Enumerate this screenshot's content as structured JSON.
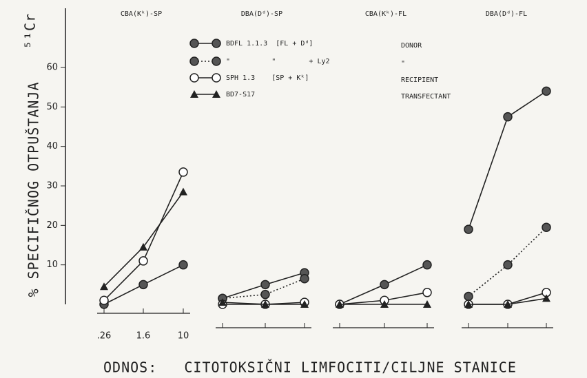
{
  "chart_data": [
    {
      "type": "line",
      "title": "CBA(Kᵏ)-SP",
      "ylabel": "% SPECIFIČNOG OTPUŠTANJA",
      "ylabel_unit": "⁵¹Cr",
      "xlabel": "ODNOS:   CITOTOKSIČNI LIMFOCITI/CILJNE STANICE",
      "ylim": [
        0,
        75
      ],
      "yticks": [
        10,
        20,
        30,
        40,
        50,
        60
      ],
      "categories": [
        ".26",
        "1.6",
        "10"
      ],
      "series": [
        {
          "name": "BDFL 1.1.3  [FL + Dᵈ]",
          "note": "DONOR",
          "marker": "filled-circle",
          "linestyle": "solid",
          "color": "#222222",
          "values": [
            0,
            5,
            10
          ]
        },
        {
          "name": "\"          \"        + Ly2",
          "note": "\"",
          "marker": "filled-circle",
          "linestyle": "dotted",
          "color": "#222222",
          "values": [
            null,
            null,
            null
          ]
        },
        {
          "name": "SPH 1.3    [SP + Kᵏ]",
          "note": "RECIPIENT",
          "marker": "open-circle",
          "linestyle": "solid",
          "color": "#222222",
          "values": [
            1,
            11,
            33.5
          ]
        },
        {
          "name": "BD7-S17",
          "note": "TRANSFECTANT",
          "marker": "triangle",
          "linestyle": "solid",
          "color": "#222222",
          "values": [
            4.5,
            14.5,
            28.5
          ]
        }
      ]
    },
    {
      "type": "line",
      "title": "DBA(Dᵈ)-SP",
      "categories": [
        null,
        null,
        null
      ],
      "series": [
        {
          "marker": "filled-circle",
          "linestyle": "solid",
          "color": "#222222",
          "values": [
            1.5,
            5,
            8
          ]
        },
        {
          "marker": "filled-circle",
          "linestyle": "dotted",
          "color": "#222222",
          "values": [
            1.5,
            2.5,
            6.5
          ]
        },
        {
          "marker": "open-circle",
          "linestyle": "solid",
          "color": "#222222",
          "values": [
            0,
            0,
            0.5
          ]
        },
        {
          "marker": "triangle",
          "linestyle": "solid",
          "color": "#222222",
          "values": [
            0.5,
            0,
            0
          ]
        }
      ]
    },
    {
      "type": "line",
      "title": "CBA(Kᵏ)-FL",
      "categories": [
        null,
        null,
        null
      ],
      "series": [
        {
          "marker": "filled-circle",
          "linestyle": "solid",
          "color": "#222222",
          "values": [
            0,
            5,
            10
          ]
        },
        {
          "marker": "filled-circle",
          "linestyle": "dotted",
          "color": "#222222",
          "values": [
            null,
            null,
            null
          ]
        },
        {
          "marker": "open-circle",
          "linestyle": "solid",
          "color": "#222222",
          "values": [
            0,
            1,
            3
          ]
        },
        {
          "marker": "triangle",
          "linestyle": "solid",
          "color": "#222222",
          "values": [
            0,
            0,
            0
          ]
        }
      ]
    },
    {
      "type": "line",
      "title": "DBA(Dᵈ)-FL",
      "categories": [
        null,
        null,
        null
      ],
      "series": [
        {
          "marker": "filled-circle",
          "linestyle": "solid",
          "color": "#222222",
          "values": [
            19,
            47.5,
            54
          ]
        },
        {
          "marker": "filled-circle",
          "linestyle": "dotted",
          "color": "#222222",
          "values": [
            2,
            10,
            19.5
          ]
        },
        {
          "marker": "open-circle",
          "linestyle": "solid",
          "color": "#222222",
          "values": [
            0,
            0,
            3
          ]
        },
        {
          "marker": "triangle",
          "linestyle": "solid",
          "color": "#222222",
          "values": [
            0,
            0,
            1.5
          ]
        }
      ]
    }
  ]
}
